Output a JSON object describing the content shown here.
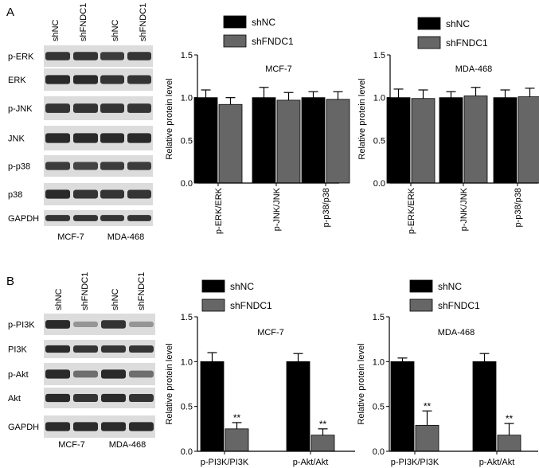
{
  "panels": [
    {
      "letter": "A",
      "blot_lanes": [
        "shNC",
        "shFNDC1",
        "shNC",
        "shFNDC1"
      ],
      "blot_rows": [
        {
          "label": "p-ERK",
          "intensity": [
            0.85,
            0.85,
            0.8,
            0.85
          ]
        },
        {
          "label": "ERK",
          "intensity": [
            0.9,
            0.9,
            0.85,
            0.85
          ]
        },
        {
          "label": "p-JNK",
          "intensity": [
            0.85,
            0.85,
            0.85,
            0.85
          ]
        },
        {
          "label": "JNK",
          "intensity": [
            0.9,
            0.9,
            0.9,
            0.9
          ]
        },
        {
          "label": "p-p38",
          "intensity": [
            0.8,
            0.75,
            0.8,
            0.8
          ]
        },
        {
          "label": "p38",
          "intensity": [
            0.9,
            0.85,
            0.85,
            0.85
          ]
        },
        {
          "label": "GAPDH",
          "intensity": [
            0.85,
            0.85,
            0.85,
            0.85
          ]
        }
      ],
      "cell_lines": [
        "MCF-7",
        "MDA-468"
      ]
    },
    {
      "letter": "B",
      "blot_lanes": [
        "shNC",
        "shFNDC1",
        "shNC",
        "shFNDC1"
      ],
      "blot_rows": [
        {
          "label": "p-PI3K",
          "intensity": [
            0.9,
            0.25,
            0.85,
            0.25
          ]
        },
        {
          "label": "PI3K",
          "intensity": [
            0.9,
            0.85,
            0.85,
            0.85
          ]
        },
        {
          "label": "p-Akt",
          "intensity": [
            0.9,
            0.5,
            0.9,
            0.5
          ]
        },
        {
          "label": "Akt",
          "intensity": [
            0.9,
            0.85,
            0.9,
            0.85
          ]
        },
        {
          "label": "GAPDH",
          "intensity": [
            0.9,
            0.9,
            0.9,
            0.9
          ]
        }
      ],
      "cell_lines": [
        "MCF-7",
        "MDA-468"
      ]
    }
  ],
  "colors": {
    "shNC": "#000000",
    "shFNDC1": "#666666",
    "blot_background": "#dcdcdc",
    "blot_band": "#1a1a1a"
  },
  "chart_data": [
    {
      "type": "bar",
      "title": "MCF-7",
      "ylabel": "Relative protein level",
      "ylim": [
        0,
        1.5
      ],
      "yticks": [
        "0.0",
        "0.5",
        "1.0",
        "1.5"
      ],
      "categories": [
        "p-ERK/ERK",
        "p-JNK/JNK",
        "p-p38/p38"
      ],
      "series": [
        {
          "name": "shNC",
          "values": [
            1.0,
            1.0,
            1.0
          ],
          "errors": [
            0.09,
            0.12,
            0.07
          ],
          "labels": [
            "",
            "",
            ""
          ]
        },
        {
          "name": "shFNDC1",
          "values": [
            0.92,
            0.97,
            0.98
          ],
          "errors": [
            0.08,
            0.09,
            0.09
          ],
          "labels": [
            "",
            "",
            ""
          ]
        }
      ],
      "legend": "top-left",
      "grid": false,
      "x_tick_rotation": "vertical"
    },
    {
      "type": "bar",
      "title": "MDA-468",
      "ylabel": "Relative protein level",
      "ylim": [
        0,
        1.5
      ],
      "yticks": [
        "0.0",
        "0.5",
        "1.0",
        "1.5"
      ],
      "categories": [
        "p-ERK/ERK",
        "p-JNK/JNK",
        "p-p38/p38"
      ],
      "series": [
        {
          "name": "shNC",
          "values": [
            1.0,
            1.0,
            1.0
          ],
          "errors": [
            0.1,
            0.07,
            0.09
          ],
          "labels": [
            "",
            "",
            ""
          ]
        },
        {
          "name": "shFNDC1",
          "values": [
            0.99,
            1.02,
            1.01
          ],
          "errors": [
            0.1,
            0.1,
            0.1
          ],
          "labels": [
            "",
            "",
            ""
          ]
        }
      ],
      "legend": "top-left",
      "grid": false,
      "x_tick_rotation": "vertical"
    },
    {
      "type": "bar",
      "title": "MCF-7",
      "ylabel": "Relative protein level",
      "ylim": [
        0,
        1.5
      ],
      "yticks": [
        "0.0",
        "0.5",
        "1.0",
        "1.5"
      ],
      "categories": [
        "p-PI3K/PI3K",
        "p-Akt/Akt"
      ],
      "series": [
        {
          "name": "shNC",
          "values": [
            1.0,
            1.0
          ],
          "errors": [
            0.1,
            0.09
          ],
          "labels": [
            "",
            ""
          ]
        },
        {
          "name": "shFNDC1",
          "values": [
            0.25,
            0.18
          ],
          "errors": [
            0.07,
            0.07
          ],
          "labels": [
            "**",
            "**"
          ]
        }
      ],
      "legend": "top-left",
      "grid": false,
      "x_tick_rotation": "horizontal"
    },
    {
      "type": "bar",
      "title": "MDA-468",
      "ylabel": "Relative protein level",
      "ylim": [
        0,
        1.5
      ],
      "yticks": [
        "0.0",
        "0.5",
        "1.0",
        "1.5"
      ],
      "categories": [
        "p-PI3K/PI3K",
        "p-Akt/Akt"
      ],
      "series": [
        {
          "name": "shNC",
          "values": [
            1.0,
            1.0
          ],
          "errors": [
            0.04,
            0.09
          ],
          "labels": [
            "",
            ""
          ]
        },
        {
          "name": "shFNDC1",
          "values": [
            0.29,
            0.18
          ],
          "errors": [
            0.16,
            0.13
          ],
          "labels": [
            "**",
            "**"
          ]
        }
      ],
      "legend": "top-left",
      "grid": false,
      "x_tick_rotation": "horizontal"
    }
  ]
}
